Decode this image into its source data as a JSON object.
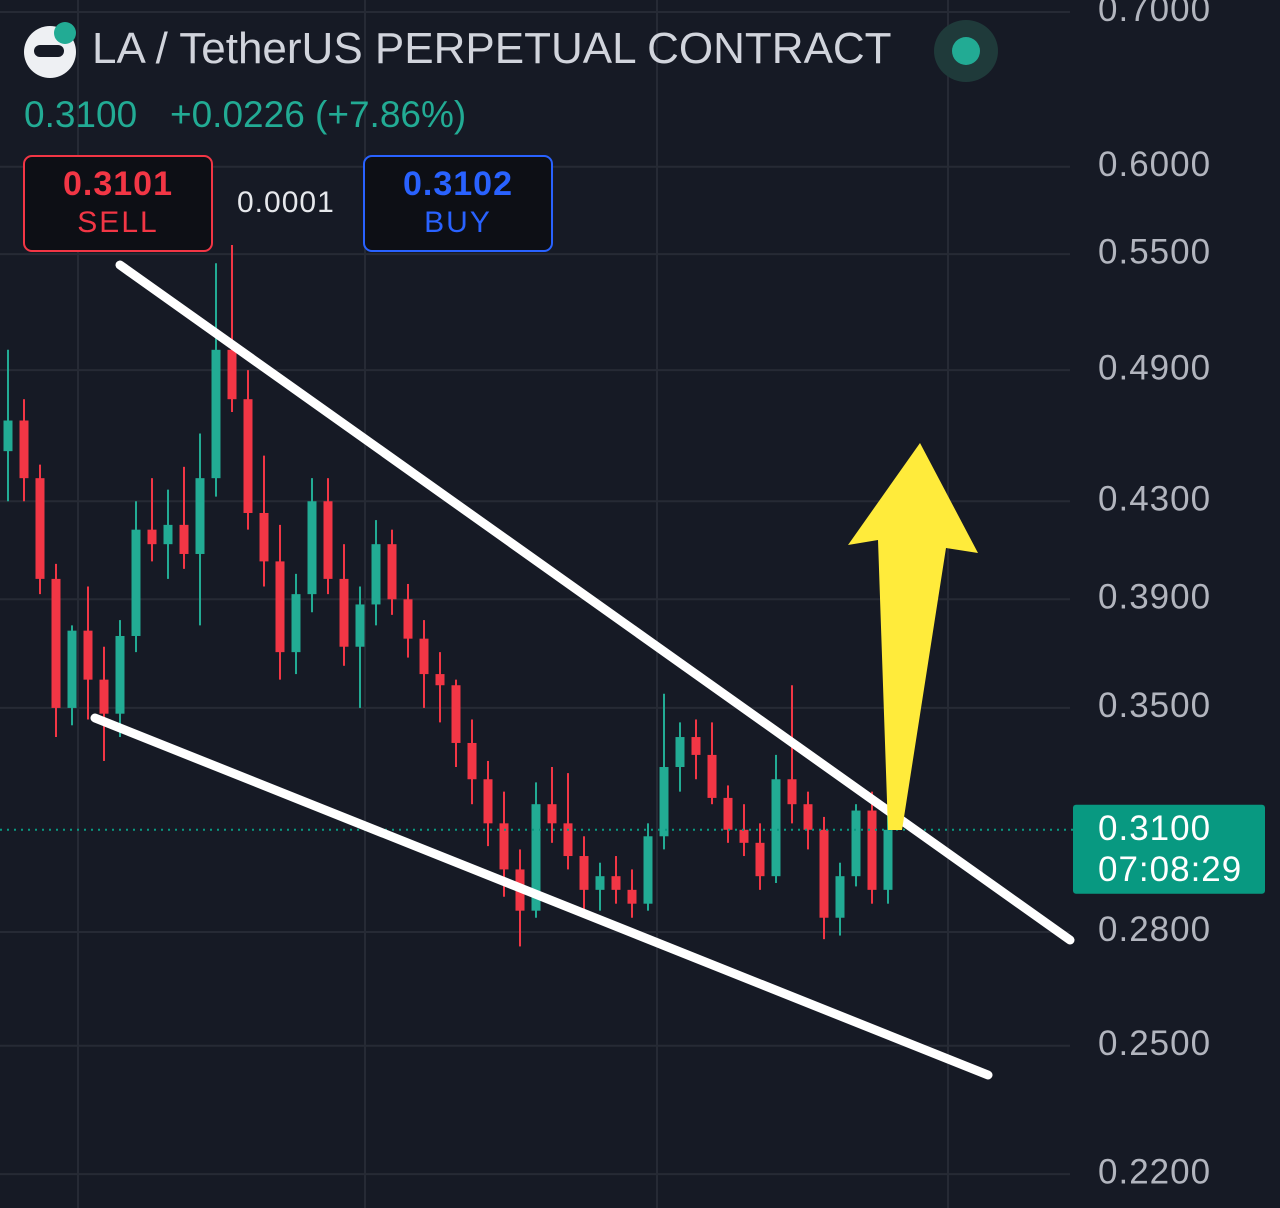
{
  "chart_data": {
    "type": "candlestick",
    "title": "LA / TetherUS PERPETUAL CONTRACT",
    "price_text": "0.3100",
    "change_text": "+0.0226 (+7.86%)",
    "sell": {
      "price": "0.3101",
      "label": "SELL"
    },
    "spread": "0.0001",
    "buy": {
      "price": "0.3102",
      "label": "BUY"
    },
    "last_price": {
      "value": 0.31,
      "label": "0.3100"
    },
    "countdown": "07:08:29",
    "log_scale": true,
    "grid": true,
    "up_color": "#22ab94",
    "down_color": "#f23645",
    "last_price_color": "#089981",
    "ylim": [
      0.2127,
      0.7084
    ],
    "yticks": [
      {
        "value": 0.7,
        "label": "0.7000"
      },
      {
        "value": 0.6,
        "label": "0.6000"
      },
      {
        "value": 0.55,
        "label": "0.5500"
      },
      {
        "value": 0.49,
        "label": "0.4900"
      },
      {
        "value": 0.43,
        "label": "0.4300"
      },
      {
        "value": 0.39,
        "label": "0.3900"
      },
      {
        "value": 0.35,
        "label": "0.3500"
      },
      {
        "value": 0.28,
        "label": "0.2800"
      },
      {
        "value": 0.25,
        "label": "0.2500"
      },
      {
        "value": 0.22,
        "label": "0.2200"
      }
    ],
    "open": [
      0.452,
      0.466,
      0.44,
      0.398,
      0.35,
      0.378,
      0.36,
      0.348,
      0.376,
      0.418,
      0.412,
      0.42,
      0.408,
      0.44,
      0.5,
      0.476,
      0.425,
      0.405,
      0.37,
      0.392,
      0.43,
      0.398,
      0.372,
      0.388,
      0.412,
      0.39,
      0.375,
      0.362,
      0.358,
      0.338,
      0.326,
      0.312,
      0.298,
      0.286,
      0.318,
      0.312,
      0.302,
      0.292,
      0.296,
      0.292,
      0.288,
      0.308,
      0.33,
      0.34,
      0.334,
      0.32,
      0.31,
      0.306,
      0.296,
      0.326,
      0.318,
      0.31,
      0.284,
      0.296,
      0.316,
      0.292
    ],
    "high": [
      0.5,
      0.476,
      0.446,
      0.404,
      0.38,
      0.395,
      0.372,
      0.382,
      0.43,
      0.44,
      0.435,
      0.445,
      0.46,
      0.545,
      0.555,
      0.49,
      0.45,
      0.42,
      0.4,
      0.44,
      0.44,
      0.412,
      0.395,
      0.422,
      0.418,
      0.396,
      0.382,
      0.37,
      0.36,
      0.346,
      0.332,
      0.322,
      0.304,
      0.325,
      0.33,
      0.328,
      0.308,
      0.3,
      0.302,
      0.298,
      0.312,
      0.355,
      0.345,
      0.346,
      0.345,
      0.324,
      0.318,
      0.312,
      0.334,
      0.358,
      0.322,
      0.314,
      0.3,
      0.318,
      0.322,
      0.316
    ],
    "low": [
      0.43,
      0.43,
      0.392,
      0.34,
      0.344,
      0.346,
      0.332,
      0.34,
      0.37,
      0.405,
      0.398,
      0.402,
      0.38,
      0.432,
      0.47,
      0.418,
      0.395,
      0.36,
      0.362,
      0.385,
      0.392,
      0.365,
      0.35,
      0.38,
      0.384,
      0.368,
      0.35,
      0.345,
      0.33,
      0.318,
      0.305,
      0.29,
      0.276,
      0.284,
      0.306,
      0.298,
      0.286,
      0.286,
      0.288,
      0.284,
      0.286,
      0.304,
      0.322,
      0.326,
      0.318,
      0.306,
      0.302,
      0.292,
      0.294,
      0.312,
      0.304,
      0.278,
      0.279,
      0.293,
      0.288,
      0.288
    ],
    "close": [
      0.466,
      0.44,
      0.398,
      0.35,
      0.378,
      0.36,
      0.348,
      0.376,
      0.418,
      0.412,
      0.42,
      0.408,
      0.44,
      0.5,
      0.476,
      0.425,
      0.405,
      0.37,
      0.392,
      0.43,
      0.398,
      0.372,
      0.388,
      0.412,
      0.39,
      0.375,
      0.362,
      0.358,
      0.338,
      0.326,
      0.312,
      0.298,
      0.286,
      0.318,
      0.312,
      0.302,
      0.292,
      0.296,
      0.292,
      0.288,
      0.308,
      0.33,
      0.34,
      0.334,
      0.32,
      0.31,
      0.306,
      0.296,
      0.326,
      0.318,
      0.31,
      0.284,
      0.296,
      0.316,
      0.292,
      0.31
    ]
  }
}
